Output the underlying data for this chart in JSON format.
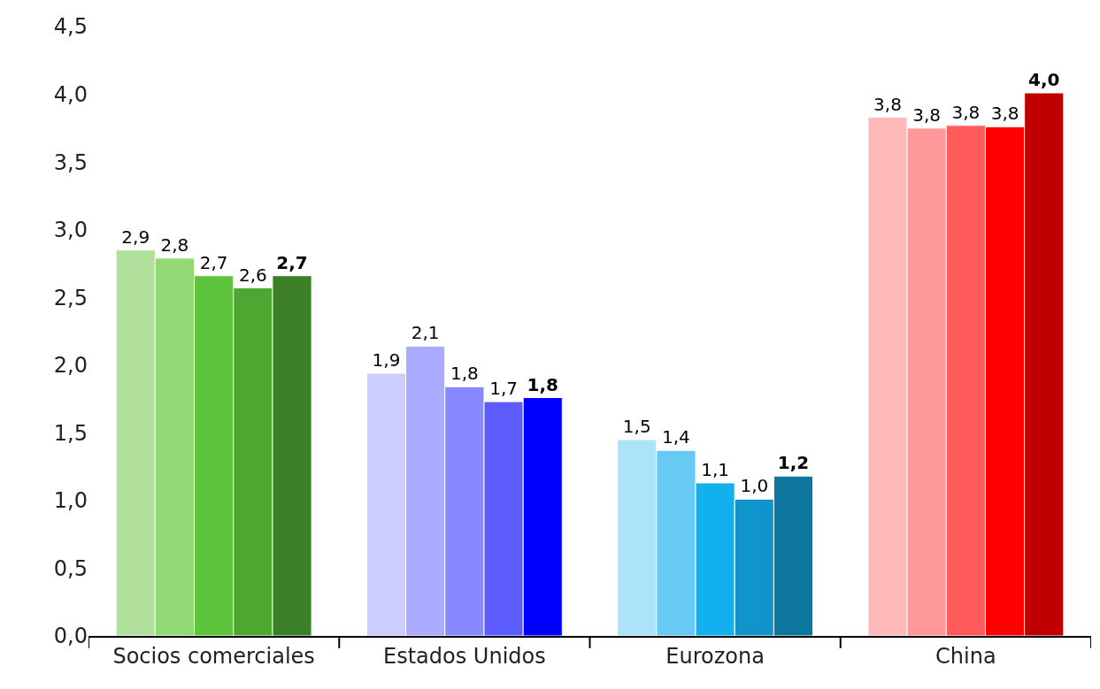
{
  "chart_data": {
    "type": "bar",
    "categories": [
      "Socios comerciales",
      "Estados Unidos",
      "Eurozona",
      "China"
    ],
    "series": [
      {
        "colors": [
          "#b0e09c",
          "#ccccff",
          "#ade3f8",
          "#ffb9b9"
        ],
        "values": [
          2.85,
          1.94,
          1.45,
          3.83
        ],
        "value_labels": [
          "2,9",
          "1,9",
          "1,5",
          "3,8"
        ]
      },
      {
        "colors": [
          "#92d874",
          "#aaaaff",
          "#66caf4",
          "#ff9999"
        ],
        "values": [
          2.79,
          2.14,
          1.37,
          3.75
        ],
        "value_labels": [
          "2,8",
          "2,1",
          "1,4",
          "3,8"
        ]
      },
      {
        "colors": [
          "#5ec43c",
          "#8888ff",
          "#12b0ee",
          "#ff5b5b"
        ],
        "values": [
          2.66,
          1.84,
          1.13,
          3.77
        ],
        "value_labels": [
          "2,7",
          "1,8",
          "1,1",
          "3,8"
        ]
      },
      {
        "colors": [
          "#4ea730",
          "#5c5cff",
          "#0f95cc",
          "#ff0000"
        ],
        "values": [
          2.57,
          1.73,
          1.01,
          3.76
        ],
        "value_labels": [
          "2,6",
          "1,7",
          "1,0",
          "3,8"
        ]
      },
      {
        "colors": [
          "#3b7f26",
          "#0000ff",
          "#0d779f",
          "#c00000"
        ],
        "values": [
          2.66,
          1.76,
          1.18,
          4.01
        ],
        "value_labels": [
          "2,7",
          "1,8",
          "1,2",
          "4,0"
        ]
      }
    ],
    "ylim": [
      0,
      4.5
    ],
    "yticks": [
      {
        "value": 0,
        "label": "0,0"
      },
      {
        "value": 0.5,
        "label": "0,5"
      },
      {
        "value": 1,
        "label": "1,0"
      },
      {
        "value": 1.5,
        "label": "1,5"
      },
      {
        "value": 2,
        "label": "2,0"
      },
      {
        "value": 2.5,
        "label": "2,5"
      },
      {
        "value": 3,
        "label": "3,0"
      },
      {
        "value": 3.5,
        "label": "3,5"
      },
      {
        "value": 4,
        "label": "4,0"
      },
      {
        "value": 4.5,
        "label": "4,5"
      }
    ],
    "grid": false
  }
}
